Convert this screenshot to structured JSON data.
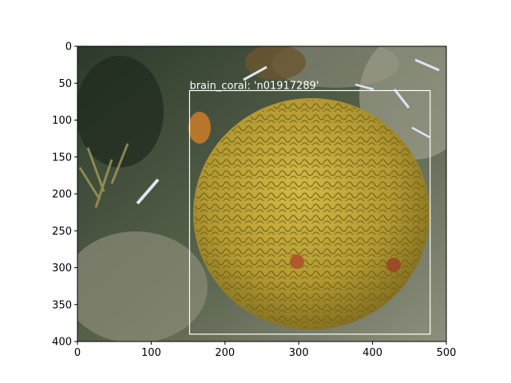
{
  "image": {
    "description_icon": "brain-coral-photo",
    "x_range": [
      0,
      500
    ],
    "y_range": [
      0,
      400
    ],
    "x_ticks": [
      "0",
      "100",
      "200",
      "300",
      "400",
      "500"
    ],
    "y_ticks": [
      "0",
      "50",
      "100",
      "150",
      "200",
      "250",
      "300",
      "350",
      "400"
    ]
  },
  "detection": {
    "label": "brain_coral: 'n01917289'",
    "box": {
      "x_min": 152,
      "y_min": 60,
      "x_max": 478,
      "y_max": 390
    },
    "color": "#ffffff"
  },
  "colors": {
    "water_dark": "#2f3a2c",
    "water_mid": "#5b6a52",
    "coral_base": "#b8a236",
    "coral_ridge": "#8a7420",
    "sand": "#9a9a88"
  }
}
